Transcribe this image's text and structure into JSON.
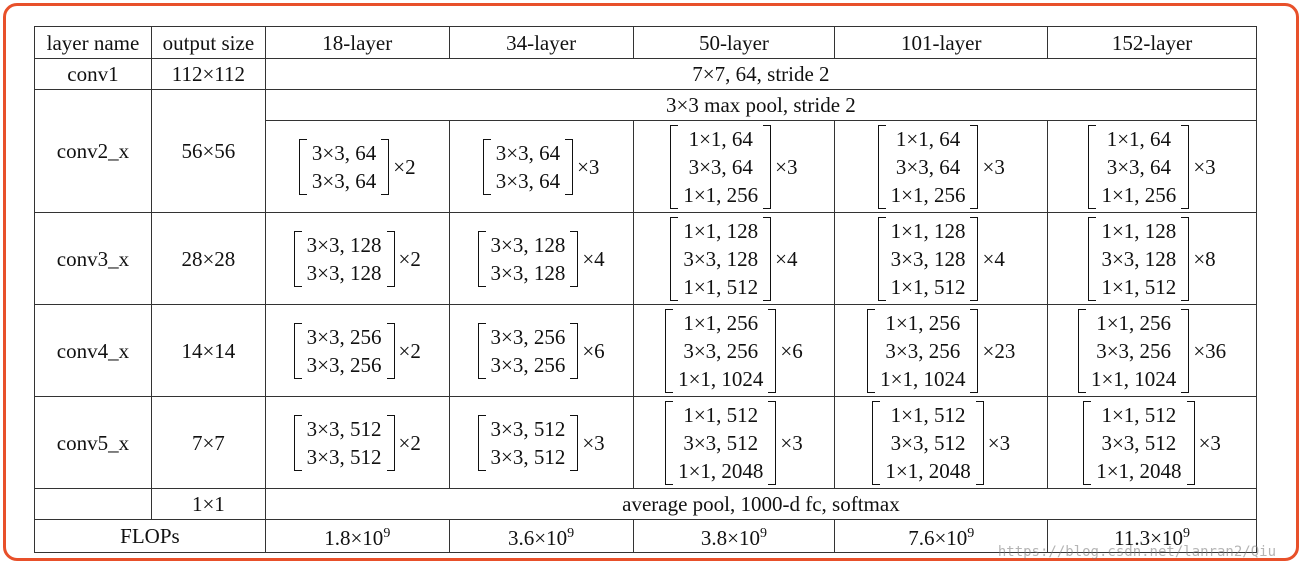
{
  "headers": [
    "layer name",
    "output size",
    "18-layer",
    "34-layer",
    "50-layer",
    "101-layer",
    "152-layer"
  ],
  "conv1": {
    "name": "conv1",
    "size": "112×112",
    "desc": "7×7, 64, stride 2"
  },
  "pool": {
    "desc": "3×3 max pool, stride 2"
  },
  "blocks": [
    {
      "name": "conv2_x",
      "size": "56×56",
      "cells": [
        {
          "lines": [
            "3×3, 64",
            "3×3, 64"
          ],
          "mult": "×2"
        },
        {
          "lines": [
            "3×3, 64",
            "3×3, 64"
          ],
          "mult": "×3"
        },
        {
          "lines": [
            "1×1, 64",
            "3×3, 64",
            "1×1, 256"
          ],
          "mult": "×3"
        },
        {
          "lines": [
            "1×1, 64",
            "3×3, 64",
            "1×1, 256"
          ],
          "mult": "×3"
        },
        {
          "lines": [
            "1×1, 64",
            "3×3, 64",
            "1×1, 256"
          ],
          "mult": "×3"
        }
      ]
    },
    {
      "name": "conv3_x",
      "size": "28×28",
      "cells": [
        {
          "lines": [
            "3×3, 128",
            "3×3, 128"
          ],
          "mult": "×2"
        },
        {
          "lines": [
            "3×3, 128",
            "3×3, 128"
          ],
          "mult": "×4"
        },
        {
          "lines": [
            "1×1, 128",
            "3×3, 128",
            "1×1, 512"
          ],
          "mult": "×4"
        },
        {
          "lines": [
            "1×1, 128",
            "3×3, 128",
            "1×1, 512"
          ],
          "mult": "×4"
        },
        {
          "lines": [
            "1×1, 128",
            "3×3, 128",
            "1×1, 512"
          ],
          "mult": "×8"
        }
      ]
    },
    {
      "name": "conv4_x",
      "size": "14×14",
      "cells": [
        {
          "lines": [
            "3×3, 256",
            "3×3, 256"
          ],
          "mult": "×2"
        },
        {
          "lines": [
            "3×3, 256",
            "3×3, 256"
          ],
          "mult": "×6"
        },
        {
          "lines": [
            "1×1, 256",
            "3×3, 256",
            "1×1, 1024"
          ],
          "mult": "×6"
        },
        {
          "lines": [
            "1×1, 256",
            "3×3, 256",
            "1×1, 1024"
          ],
          "mult": "×23"
        },
        {
          "lines": [
            "1×1, 256",
            "3×3, 256",
            "1×1, 1024"
          ],
          "mult": "×36"
        }
      ]
    },
    {
      "name": "conv5_x",
      "size": "7×7",
      "cells": [
        {
          "lines": [
            "3×3, 512",
            "3×3, 512"
          ],
          "mult": "×2"
        },
        {
          "lines": [
            "3×3, 512",
            "3×3, 512"
          ],
          "mult": "×3"
        },
        {
          "lines": [
            "1×1, 512",
            "3×3, 512",
            "1×1, 2048"
          ],
          "mult": "×3"
        },
        {
          "lines": [
            "1×1, 512",
            "3×3, 512",
            "1×1, 2048"
          ],
          "mult": "×3"
        },
        {
          "lines": [
            "1×1, 512",
            "3×3, 512",
            "1×1, 2048"
          ],
          "mult": "×3"
        }
      ]
    }
  ],
  "final": {
    "size": "1×1",
    "desc": "average pool, 1000-d fc, softmax"
  },
  "flops": {
    "label": "FLOPs",
    "values": [
      "1.8",
      "3.6",
      "3.8",
      "7.6",
      "11.3"
    ],
    "base": "×10",
    "exp": "9"
  },
  "watermark": "https://blog.csdn.net/lanran2/Qiu"
}
